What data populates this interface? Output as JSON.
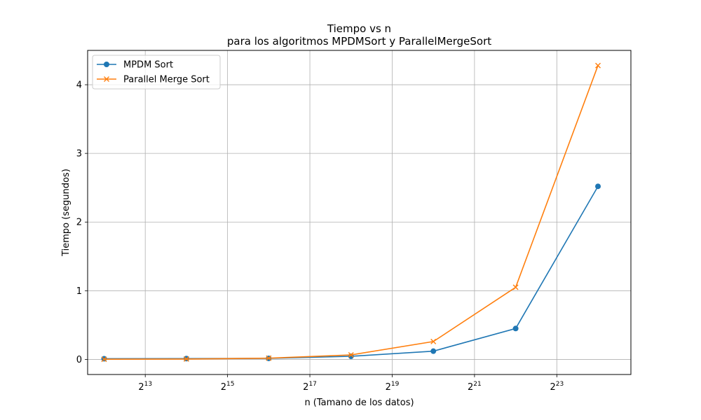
{
  "chart_data": {
    "type": "line",
    "title": "Tiempo vs n",
    "subtitle": "para los algoritmos MPDMSort y ParallelMergeSort",
    "xlabel": "n (Tamano de los datos)",
    "ylabel": "Tiempo (segundos)",
    "x_scale": "log2",
    "x_tick_base": "2",
    "x_tick_exponents": [
      "13",
      "15",
      "17",
      "19",
      "21",
      "23"
    ],
    "y_ticks": [
      "0",
      "1",
      "2",
      "3",
      "4"
    ],
    "xlim_exponent": [
      11.6,
      24.8
    ],
    "ylim": [
      -0.22,
      4.5
    ],
    "grid": true,
    "legend_position": "upper-left",
    "x_exponents": [
      12,
      14,
      16,
      18,
      20,
      22,
      24
    ],
    "series": [
      {
        "name": "MPDM Sort",
        "color": "#1f77b4",
        "marker": "circle",
        "values": [
          0.01,
          0.012,
          0.015,
          0.045,
          0.12,
          0.45,
          2.52
        ]
      },
      {
        "name": "Parallel Merge Sort",
        "color": "#ff7f0e",
        "marker": "x",
        "values": [
          0.002,
          0.005,
          0.018,
          0.065,
          0.26,
          1.05,
          4.28
        ]
      }
    ]
  }
}
